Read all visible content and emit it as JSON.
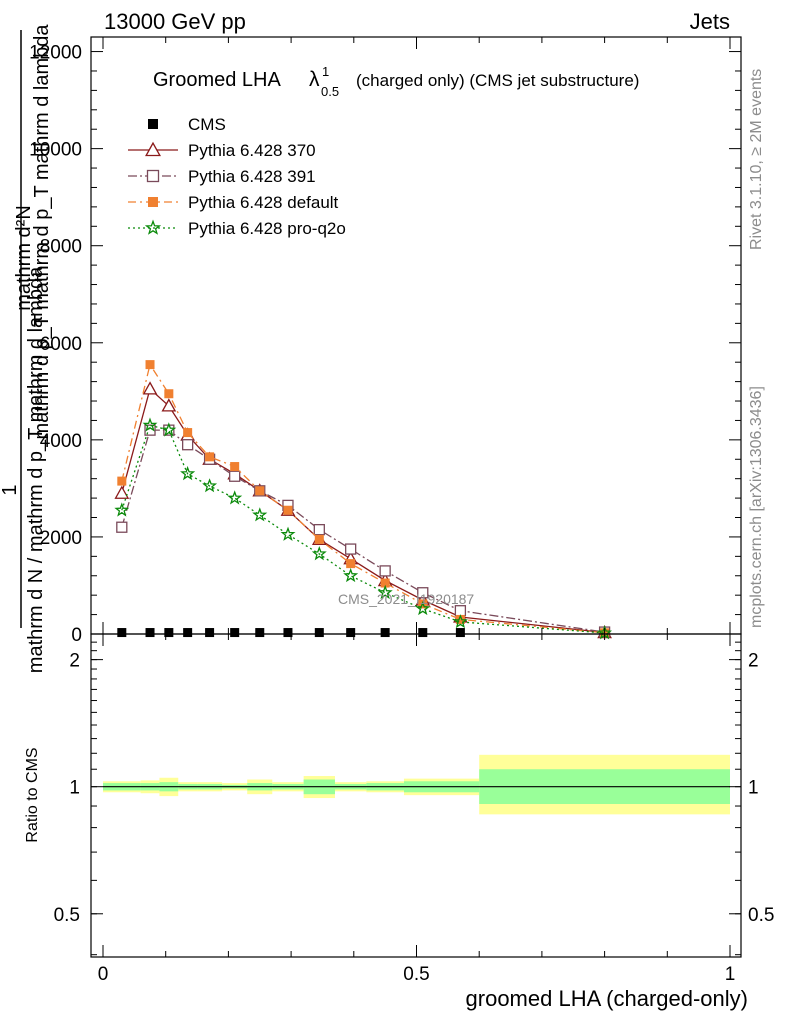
{
  "header": {
    "left": "13000 GeV pp",
    "right": "Jets"
  },
  "side": {
    "rivet": "Rivet 3.1.10, ≥ 2M events",
    "mcplots": "mcplots.cern.ch [arXiv:1306.3436]"
  },
  "watermark": "CMS_2021_I1920187",
  "chart_data": [
    {
      "type": "line",
      "title": {
        "main": "Groomed LHA",
        "lambda": "λ",
        "sup": "1",
        "sub": "0.5",
        "suffix": "(charged only) (CMS jet substructure)"
      },
      "ylabel": "mathrm d N / mathrm d p_T mathrm d lambda",
      "ylabel_parts": {
        "numerator": "mathrm d²N",
        "denominator": "mathrm d p_T mathrm d p_T mathrm d lambda",
        "one": "1",
        "denominator2": "mathrm d N / mathrm d p_T"
      },
      "xlim": [
        0,
        1
      ],
      "ylim": [
        0,
        12300
      ],
      "yticks": [
        {
          "value": 0,
          "label": "0"
        },
        {
          "value": 2000,
          "label": "2000"
        },
        {
          "value": 4000,
          "label": "4000"
        },
        {
          "value": 6000,
          "label": "6000"
        },
        {
          "value": 8000,
          "label": "8000"
        },
        {
          "value": 10000,
          "label": "10000"
        },
        {
          "value": 12000,
          "label": "12000"
        }
      ],
      "legend_position": "top-left",
      "series": [
        {
          "name": "CMS",
          "color": "#000000",
          "marker": "square",
          "style": "points",
          "x": [
            0.03,
            0.075,
            0.105,
            0.135,
            0.17,
            0.21,
            0.25,
            0.295,
            0.345,
            0.395,
            0.45,
            0.51,
            0.57
          ],
          "y": [
            30,
            30,
            30,
            30,
            30,
            30,
            30,
            30,
            30,
            30,
            30,
            30,
            30
          ]
        },
        {
          "name": "Pythia 6.428 370",
          "color": "#8b1a1a",
          "marker": "open-triangle",
          "dash": "",
          "x": [
            0.03,
            0.075,
            0.105,
            0.135,
            0.17,
            0.21,
            0.25,
            0.295,
            0.345,
            0.395,
            0.45,
            0.51,
            0.57,
            0.8
          ],
          "y": [
            2900,
            5050,
            4700,
            4100,
            3600,
            3300,
            2950,
            2550,
            1950,
            1550,
            1100,
            700,
            350,
            30
          ]
        },
        {
          "name": "Pythia 6.428 391",
          "color": "#7a4a5a",
          "marker": "open-square",
          "dash": "9,3,2,3",
          "x": [
            0.03,
            0.075,
            0.105,
            0.135,
            0.17,
            0.21,
            0.25,
            0.295,
            0.345,
            0.395,
            0.45,
            0.51,
            0.57,
            0.8
          ],
          "y": [
            2200,
            4200,
            4200,
            3900,
            3600,
            3250,
            2950,
            2650,
            2150,
            1750,
            1300,
            850,
            480,
            40
          ]
        },
        {
          "name": "Pythia 6.428 default",
          "color": "#f08030",
          "marker": "filled-square",
          "dash": "8,4,2,4",
          "x": [
            0.03,
            0.075,
            0.105,
            0.135,
            0.17,
            0.21,
            0.25,
            0.295,
            0.345,
            0.395,
            0.45,
            0.51,
            0.57,
            0.8
          ],
          "y": [
            3150,
            5550,
            4950,
            4150,
            3650,
            3450,
            2950,
            2550,
            1950,
            1450,
            1050,
            620,
            300,
            25
          ]
        },
        {
          "name": "Pythia 6.428 pro-q2o",
          "color": "#0a8a0a",
          "marker": "star",
          "dash": "2,3",
          "x": [
            0.03,
            0.075,
            0.105,
            0.135,
            0.17,
            0.21,
            0.25,
            0.295,
            0.345,
            0.395,
            0.45,
            0.51,
            0.57,
            0.8
          ],
          "y": [
            2550,
            4300,
            4200,
            3300,
            3050,
            2800,
            2450,
            2050,
            1650,
            1200,
            850,
            520,
            250,
            20
          ]
        }
      ]
    },
    {
      "type": "area",
      "xlabel": "groomed LHA (charged-only)",
      "ylabel": "Ratio to CMS",
      "xlim": [
        0,
        1
      ],
      "ylim": [
        0.395,
        2.3
      ],
      "log_y": true,
      "xticks": [
        {
          "value": 0,
          "label": "0"
        },
        {
          "value": 0.5,
          "label": "0.5"
        },
        {
          "value": 1,
          "label": "1"
        }
      ],
      "yticks": [
        {
          "value": 0.5,
          "label": "0.5"
        },
        {
          "value": 1,
          "label": "1"
        },
        {
          "value": 2,
          "label": "2"
        }
      ],
      "band_colors": {
        "total": "#ffff99",
        "stat": "#99ff99",
        "reference": "#000000"
      },
      "bins": [
        {
          "x0": 0.0,
          "x1": 0.06,
          "total": [
            0.97,
            1.03
          ],
          "stat": [
            0.98,
            1.02
          ]
        },
        {
          "x0": 0.06,
          "x1": 0.09,
          "total": [
            0.965,
            1.035
          ],
          "stat": [
            0.98,
            1.02
          ]
        },
        {
          "x0": 0.09,
          "x1": 0.12,
          "total": [
            0.95,
            1.05
          ],
          "stat": [
            0.975,
            1.025
          ]
        },
        {
          "x0": 0.12,
          "x1": 0.15,
          "total": [
            0.975,
            1.025
          ],
          "stat": [
            0.985,
            1.015
          ]
        },
        {
          "x0": 0.15,
          "x1": 0.19,
          "total": [
            0.975,
            1.025
          ],
          "stat": [
            0.985,
            1.015
          ]
        },
        {
          "x0": 0.19,
          "x1": 0.23,
          "total": [
            0.98,
            1.02
          ],
          "stat": [
            0.99,
            1.01
          ]
        },
        {
          "x0": 0.23,
          "x1": 0.27,
          "total": [
            0.96,
            1.04
          ],
          "stat": [
            0.98,
            1.02
          ]
        },
        {
          "x0": 0.27,
          "x1": 0.32,
          "total": [
            0.975,
            1.025
          ],
          "stat": [
            0.985,
            1.015
          ]
        },
        {
          "x0": 0.32,
          "x1": 0.37,
          "total": [
            0.94,
            1.06
          ],
          "stat": [
            0.96,
            1.04
          ]
        },
        {
          "x0": 0.37,
          "x1": 0.42,
          "total": [
            0.975,
            1.025
          ],
          "stat": [
            0.985,
            1.015
          ]
        },
        {
          "x0": 0.42,
          "x1": 0.48,
          "total": [
            0.97,
            1.03
          ],
          "stat": [
            0.98,
            1.02
          ]
        },
        {
          "x0": 0.48,
          "x1": 0.6,
          "total": [
            0.955,
            1.045
          ],
          "stat": [
            0.97,
            1.03
          ]
        },
        {
          "x0": 0.6,
          "x1": 1.0,
          "total": [
            0.86,
            1.19
          ],
          "stat": [
            0.91,
            1.1
          ]
        }
      ]
    }
  ]
}
